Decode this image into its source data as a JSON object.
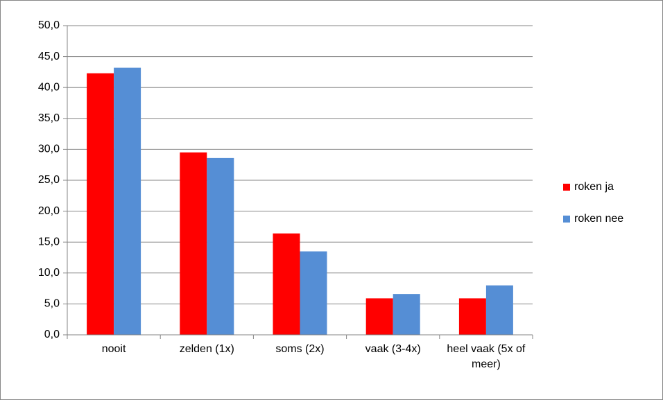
{
  "chart_data": {
    "type": "bar",
    "categories": [
      "nooit",
      "zelden (1x)",
      "soms (2x)",
      "vaak (3-4x)",
      "heel vaak (5x of meer)"
    ],
    "series": [
      {
        "name": "roken ja",
        "color": "#ff0000",
        "values": [
          42.3,
          29.5,
          16.4,
          5.9,
          5.9
        ]
      },
      {
        "name": "roken nee",
        "color": "#558ed5",
        "values": [
          43.2,
          28.6,
          13.5,
          6.6,
          8.0
        ]
      }
    ],
    "ylim": [
      0,
      50
    ],
    "yticks": [
      {
        "value": 0,
        "label": "0,0"
      },
      {
        "value": 5,
        "label": "5,0"
      },
      {
        "value": 10,
        "label": "10,0"
      },
      {
        "value": 15,
        "label": "15,0"
      },
      {
        "value": 20,
        "label": "20,0"
      },
      {
        "value": 25,
        "label": "25,0"
      },
      {
        "value": 30,
        "label": "30,0"
      },
      {
        "value": 35,
        "label": "35,0"
      },
      {
        "value": 40,
        "label": "40,0"
      },
      {
        "value": 45,
        "label": "45,0"
      },
      {
        "value": 50,
        "label": "50,0"
      }
    ],
    "grid": true,
    "legend": "right"
  }
}
